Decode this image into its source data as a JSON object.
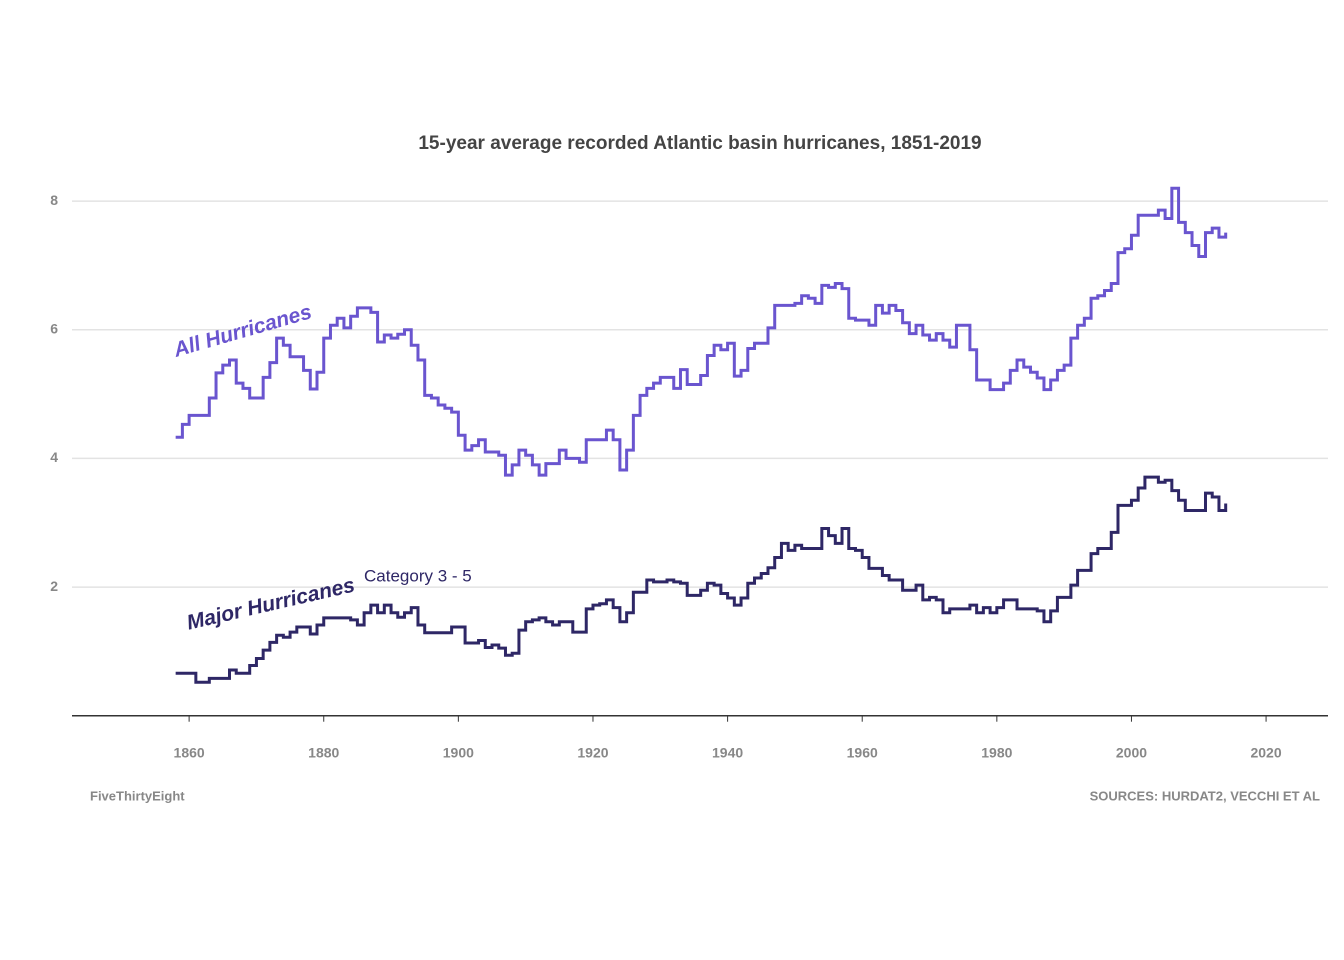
{
  "chart_data": {
    "type": "step",
    "title": "15-year average recorded Atlantic basin hurricanes, 1851-2019",
    "annotation": "Category 3 - 5",
    "credit": "FiveThirtyEight",
    "source": "SOURCES: HURDAT2, VECCHI ET AL",
    "x": [
      1858,
      1859,
      1860,
      1861,
      1862,
      1863,
      1864,
      1865,
      1866,
      1867,
      1868,
      1869,
      1870,
      1871,
      1872,
      1873,
      1874,
      1875,
      1876,
      1877,
      1878,
      1879,
      1880,
      1881,
      1882,
      1883,
      1884,
      1885,
      1886,
      1887,
      1888,
      1889,
      1890,
      1891,
      1892,
      1893,
      1894,
      1895,
      1896,
      1897,
      1898,
      1899,
      1900,
      1901,
      1902,
      1903,
      1904,
      1905,
      1906,
      1907,
      1908,
      1909,
      1910,
      1911,
      1912,
      1913,
      1914,
      1915,
      1916,
      1917,
      1918,
      1919,
      1920,
      1921,
      1922,
      1923,
      1924,
      1925,
      1926,
      1927,
      1928,
      1929,
      1930,
      1931,
      1932,
      1933,
      1934,
      1935,
      1936,
      1937,
      1938,
      1939,
      1940,
      1941,
      1942,
      1943,
      1944,
      1945,
      1946,
      1947,
      1948,
      1949,
      1950,
      1951,
      1952,
      1953,
      1954,
      1955,
      1956,
      1957,
      1958,
      1959,
      1960,
      1961,
      1962,
      1963,
      1964,
      1965,
      1966,
      1967,
      1968,
      1969,
      1970,
      1971,
      1972,
      1973,
      1974,
      1975,
      1976,
      1977,
      1978,
      1979,
      1980,
      1981,
      1982,
      1983,
      1984,
      1985,
      1986,
      1987,
      1988,
      1989,
      1990,
      1991,
      1992,
      1993,
      1994,
      1995,
      1996,
      1997,
      1998,
      1999,
      2000,
      2001,
      2002,
      2003,
      2004,
      2005,
      2006,
      2007,
      2008,
      2009,
      2010,
      2011,
      2012,
      2013,
      2014
    ],
    "series": [
      {
        "name": "All Hurricanes",
        "color": "#6a55cf",
        "values": [
          4.33,
          4.53,
          4.67,
          4.67,
          4.67,
          4.94,
          5.33,
          5.45,
          5.53,
          5.17,
          5.09,
          4.94,
          4.94,
          5.26,
          5.49,
          5.87,
          5.76,
          5.58,
          5.58,
          5.37,
          5.08,
          5.34,
          5.87,
          6.07,
          6.18,
          6.03,
          6.21,
          6.34,
          6.34,
          6.27,
          5.81,
          5.92,
          5.87,
          5.93,
          6.0,
          5.76,
          5.53,
          4.98,
          4.94,
          4.83,
          4.78,
          4.72,
          4.36,
          4.13,
          4.2,
          4.29,
          4.1,
          4.1,
          4.05,
          3.74,
          3.9,
          4.13,
          4.05,
          3.9,
          3.74,
          3.92,
          3.92,
          4.13,
          4.0,
          4.0,
          3.94,
          4.29,
          4.29,
          4.29,
          4.44,
          4.29,
          3.82,
          4.13,
          4.67,
          4.98,
          5.09,
          5.17,
          5.26,
          5.26,
          5.09,
          5.38,
          5.15,
          5.15,
          5.29,
          5.6,
          5.76,
          5.69,
          5.79,
          5.28,
          5.37,
          5.71,
          5.79,
          5.79,
          6.03,
          6.38,
          6.38,
          6.38,
          6.41,
          6.53,
          6.49,
          6.41,
          6.69,
          6.66,
          6.72,
          6.64,
          6.18,
          6.15,
          6.15,
          6.07,
          6.38,
          6.26,
          6.38,
          6.3,
          6.11,
          5.94,
          6.07,
          5.92,
          5.84,
          5.94,
          5.84,
          5.73,
          6.07,
          6.07,
          5.69,
          5.22,
          5.22,
          5.07,
          5.07,
          5.17,
          5.37,
          5.53,
          5.42,
          5.34,
          5.25,
          5.07,
          5.22,
          5.37,
          5.45,
          5.87,
          6.07,
          6.18,
          6.49,
          6.53,
          6.61,
          6.72,
          7.2,
          7.26,
          7.47,
          7.78,
          7.78,
          7.78,
          7.86,
          7.73,
          8.2,
          7.67,
          7.51,
          7.31,
          7.14,
          7.51,
          7.58,
          7.44,
          7.51
        ]
      },
      {
        "name": "Major Hurricanes",
        "color": "#2e2766",
        "values": [
          0.66,
          0.66,
          0.66,
          0.52,
          0.52,
          0.58,
          0.58,
          0.58,
          0.71,
          0.66,
          0.66,
          0.78,
          0.89,
          1.02,
          1.14,
          1.25,
          1.22,
          1.3,
          1.38,
          1.38,
          1.27,
          1.41,
          1.52,
          1.52,
          1.52,
          1.52,
          1.49,
          1.41,
          1.6,
          1.72,
          1.6,
          1.72,
          1.6,
          1.53,
          1.6,
          1.68,
          1.41,
          1.29,
          1.29,
          1.29,
          1.29,
          1.38,
          1.38,
          1.13,
          1.13,
          1.17,
          1.06,
          1.1,
          1.05,
          0.94,
          0.97,
          1.33,
          1.46,
          1.49,
          1.52,
          1.46,
          1.41,
          1.46,
          1.46,
          1.3,
          1.3,
          1.66,
          1.72,
          1.74,
          1.8,
          1.68,
          1.46,
          1.6,
          1.92,
          1.92,
          2.11,
          2.08,
          2.08,
          2.11,
          2.08,
          2.06,
          1.87,
          1.87,
          1.95,
          2.06,
          2.03,
          1.9,
          1.83,
          1.72,
          1.83,
          2.06,
          2.14,
          2.21,
          2.3,
          2.46,
          2.68,
          2.57,
          2.65,
          2.6,
          2.6,
          2.6,
          2.91,
          2.8,
          2.68,
          2.91,
          2.6,
          2.57,
          2.46,
          2.29,
          2.29,
          2.18,
          2.11,
          2.11,
          1.95,
          1.95,
          2.03,
          1.8,
          1.84,
          1.8,
          1.6,
          1.66,
          1.66,
          1.66,
          1.72,
          1.6,
          1.68,
          1.6,
          1.68,
          1.8,
          1.8,
          1.66,
          1.66,
          1.66,
          1.63,
          1.46,
          1.63,
          1.84,
          1.84,
          2.03,
          2.26,
          2.26,
          2.52,
          2.6,
          2.6,
          2.85,
          3.27,
          3.27,
          3.35,
          3.54,
          3.71,
          3.71,
          3.63,
          3.66,
          3.5,
          3.35,
          3.19,
          3.19,
          3.19,
          3.46,
          3.4,
          3.19,
          3.3
        ]
      }
    ],
    "xlim": [
      1842.6,
      2029.2
    ],
    "ylim": [
      0,
      8.5
    ],
    "xticks": [
      1860,
      1880,
      1900,
      1920,
      1940,
      1960,
      1980,
      2000,
      2020
    ],
    "yticks": [
      2,
      4,
      6,
      8
    ],
    "grid": true
  }
}
